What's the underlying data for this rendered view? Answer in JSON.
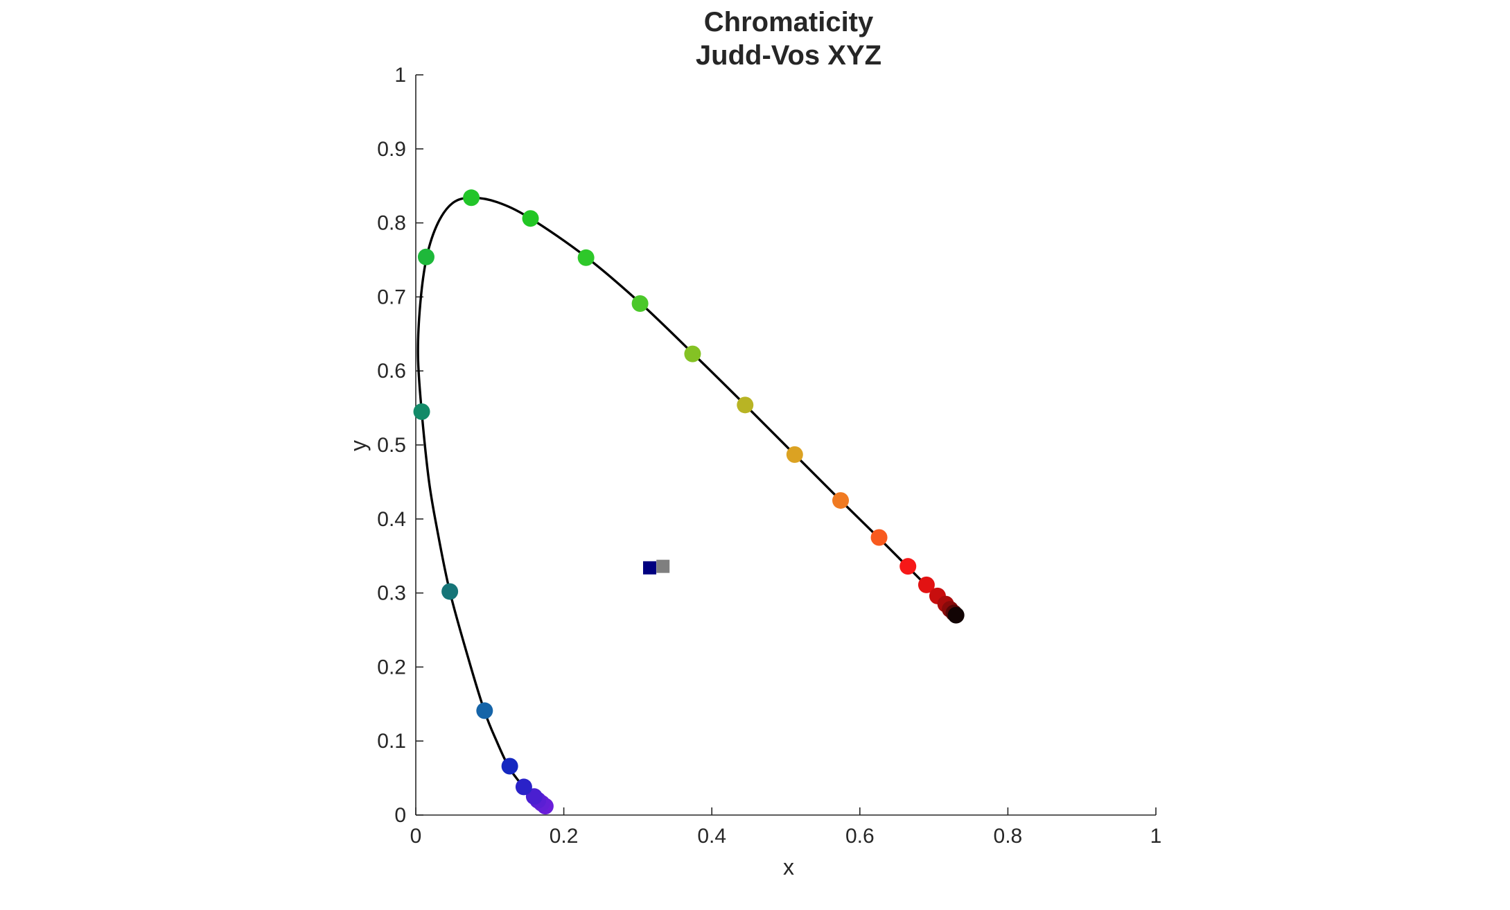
{
  "chart_data": {
    "type": "scatter",
    "title": [
      "Chromaticity",
      "Judd-Vos XYZ"
    ],
    "xlabel": "x",
    "ylabel": "y",
    "xlim": [
      0,
      1
    ],
    "ylim": [
      0,
      1
    ],
    "xticks": [
      0,
      0.2,
      0.4,
      0.6,
      0.8,
      1
    ],
    "xtick_labels": [
      "0",
      "0.2",
      "0.4",
      "0.6",
      "0.8",
      "1"
    ],
    "yticks": [
      0,
      0.1,
      0.2,
      0.3,
      0.4,
      0.5,
      0.6,
      0.7,
      0.8,
      0.9,
      1
    ],
    "ytick_labels": [
      "0",
      "0.1",
      "0.2",
      "0.3",
      "0.4",
      "0.5",
      "0.6",
      "0.7",
      "0.8",
      "0.9",
      "1"
    ],
    "grid": false,
    "spectrum_locus": {
      "color": "#000000",
      "points": [
        [
          0.176,
          0.01
        ],
        [
          0.172,
          0.012
        ],
        [
          0.168,
          0.017
        ],
        [
          0.165,
          0.022
        ],
        [
          0.16,
          0.026
        ],
        [
          0.153,
          0.032
        ],
        [
          0.146,
          0.038
        ],
        [
          0.136,
          0.05
        ],
        [
          0.125,
          0.066
        ],
        [
          0.11,
          0.098
        ],
        [
          0.093,
          0.14
        ],
        [
          0.07,
          0.215
        ],
        [
          0.046,
          0.302
        ],
        [
          0.03,
          0.38
        ],
        [
          0.018,
          0.45
        ],
        [
          0.008,
          0.545
        ],
        [
          0.003,
          0.62
        ],
        [
          0.006,
          0.69
        ],
        [
          0.015,
          0.755
        ],
        [
          0.03,
          0.8
        ],
        [
          0.05,
          0.827
        ],
        [
          0.075,
          0.834
        ],
        [
          0.11,
          0.828
        ],
        [
          0.155,
          0.806
        ],
        [
          0.23,
          0.754
        ],
        [
          0.303,
          0.692
        ],
        [
          0.374,
          0.624
        ],
        [
          0.445,
          0.554
        ],
        [
          0.512,
          0.487
        ],
        [
          0.574,
          0.425
        ],
        [
          0.626,
          0.374
        ],
        [
          0.665,
          0.335
        ],
        [
          0.69,
          0.31
        ],
        [
          0.705,
          0.295
        ],
        [
          0.716,
          0.284
        ],
        [
          0.723,
          0.277
        ],
        [
          0.728,
          0.272
        ],
        [
          0.731,
          0.269
        ]
      ]
    },
    "locus_markers": [
      {
        "x": 0.175,
        "y": 0.012,
        "color": "#6a1ed9"
      },
      {
        "x": 0.17,
        "y": 0.016,
        "color": "#6420d6"
      },
      {
        "x": 0.165,
        "y": 0.02,
        "color": "#5a1fd4"
      },
      {
        "x": 0.16,
        "y": 0.025,
        "color": "#4a1fd0"
      },
      {
        "x": 0.146,
        "y": 0.038,
        "color": "#2a22c8"
      },
      {
        "x": 0.127,
        "y": 0.066,
        "color": "#1528c0"
      },
      {
        "x": 0.093,
        "y": 0.141,
        "color": "#1564a8"
      },
      {
        "x": 0.046,
        "y": 0.302,
        "color": "#167578"
      },
      {
        "x": 0.008,
        "y": 0.545,
        "color": "#138a68"
      },
      {
        "x": 0.014,
        "y": 0.754,
        "color": "#1eb83a"
      },
      {
        "x": 0.075,
        "y": 0.834,
        "color": "#22c529"
      },
      {
        "x": 0.155,
        "y": 0.806,
        "color": "#22c624"
      },
      {
        "x": 0.23,
        "y": 0.753,
        "color": "#2ec82a"
      },
      {
        "x": 0.303,
        "y": 0.691,
        "color": "#4bc82a"
      },
      {
        "x": 0.374,
        "y": 0.623,
        "color": "#84c224"
      },
      {
        "x": 0.445,
        "y": 0.554,
        "color": "#b8b424"
      },
      {
        "x": 0.512,
        "y": 0.487,
        "color": "#dba222"
      },
      {
        "x": 0.574,
        "y": 0.425,
        "color": "#f07a22"
      },
      {
        "x": 0.626,
        "y": 0.375,
        "color": "#f85a1e"
      },
      {
        "x": 0.665,
        "y": 0.336,
        "color": "#f61818"
      },
      {
        "x": 0.69,
        "y": 0.311,
        "color": "#e21212"
      },
      {
        "x": 0.705,
        "y": 0.296,
        "color": "#c80e0e"
      },
      {
        "x": 0.716,
        "y": 0.285,
        "color": "#aa0c0c"
      },
      {
        "x": 0.722,
        "y": 0.278,
        "color": "#880a0a"
      },
      {
        "x": 0.727,
        "y": 0.273,
        "color": "#560707"
      },
      {
        "x": 0.73,
        "y": 0.27,
        "color": "#120404"
      }
    ],
    "white_points": [
      {
        "x": 0.316,
        "y": 0.334,
        "color": "#000080"
      },
      {
        "x": 0.334,
        "y": 0.336,
        "color": "#7f7f7f"
      }
    ]
  }
}
